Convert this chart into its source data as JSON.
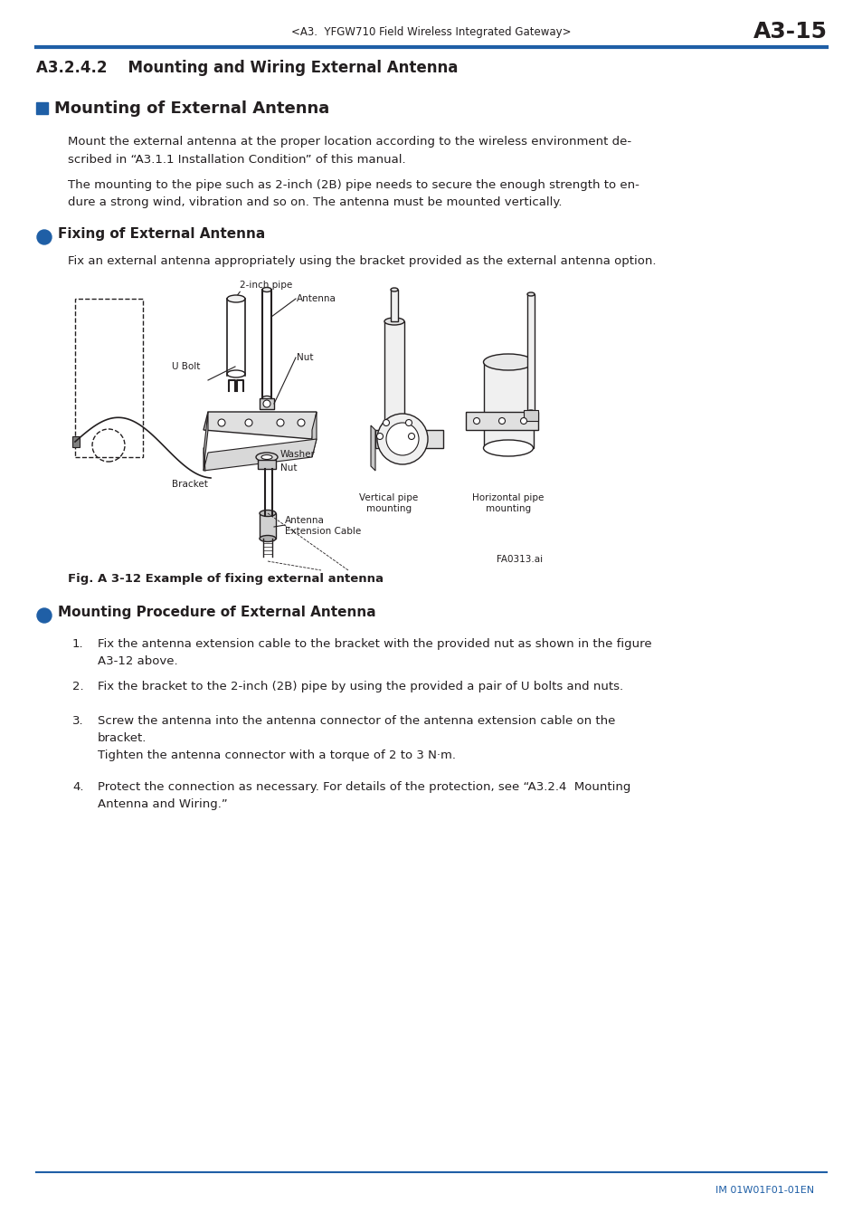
{
  "page_header_center": "<A3.  YFGW710 Field Wireless Integrated Gateway>",
  "page_header_right": "A3-15",
  "header_line_color": "#1f5fa6",
  "section_title": "A3.2.4.2    Mounting and Wiring External Antenna",
  "h1_title": "Mounting of External Antenna",
  "h1_marker_color": "#1f5fa6",
  "para1": "Mount the external antenna at the proper location according to the wireless environment de-\nscribed in “A3.1.1 Installation Condition” of this manual.",
  "para2": "The mounting to the pipe such as 2-inch (2B) pipe needs to secure the enough strength to en-\ndure a strong wind, vibration and so on. The antenna must be mounted vertically.",
  "h2_title1": "Fixing of External Antenna",
  "h2_marker_color": "#1f5fa6",
  "h2_para1": "Fix an external antenna appropriately using the bracket provided as the external antenna option.",
  "fig_caption": "Fig. A 3-12 Example of fixing external antenna",
  "fig_note": "FA0313.ai",
  "h2_title2": "Mounting Procedure of External Antenna",
  "step1": "Fix the antenna extension cable to the bracket with the provided nut as shown in the figure\nA3-12 above.",
  "step2": "Fix the bracket to the 2-inch (2B) pipe by using the provided a pair of U bolts and nuts.",
  "step3": "Screw the antenna into the antenna connector of the antenna extension cable on the\nbracket.\nTighten the antenna connector with a torque of 2 to 3 N·m.",
  "step4": "Protect the connection as necessary. For details of the protection, see “A3.2.4  Mounting\nAntenna and Wiring.”",
  "footer_line_color": "#1f5fa6",
  "footer_text": "IM 01W01F01-01EN",
  "footer_text_color": "#1f5fa6",
  "bg_color": "#ffffff",
  "text_color": "#231f20",
  "font_size_header": 8.5,
  "font_size_section": 12,
  "font_size_h1": 13,
  "font_size_h2": 11,
  "font_size_body": 9.5,
  "font_size_caption": 9.5,
  "font_size_footer": 8
}
